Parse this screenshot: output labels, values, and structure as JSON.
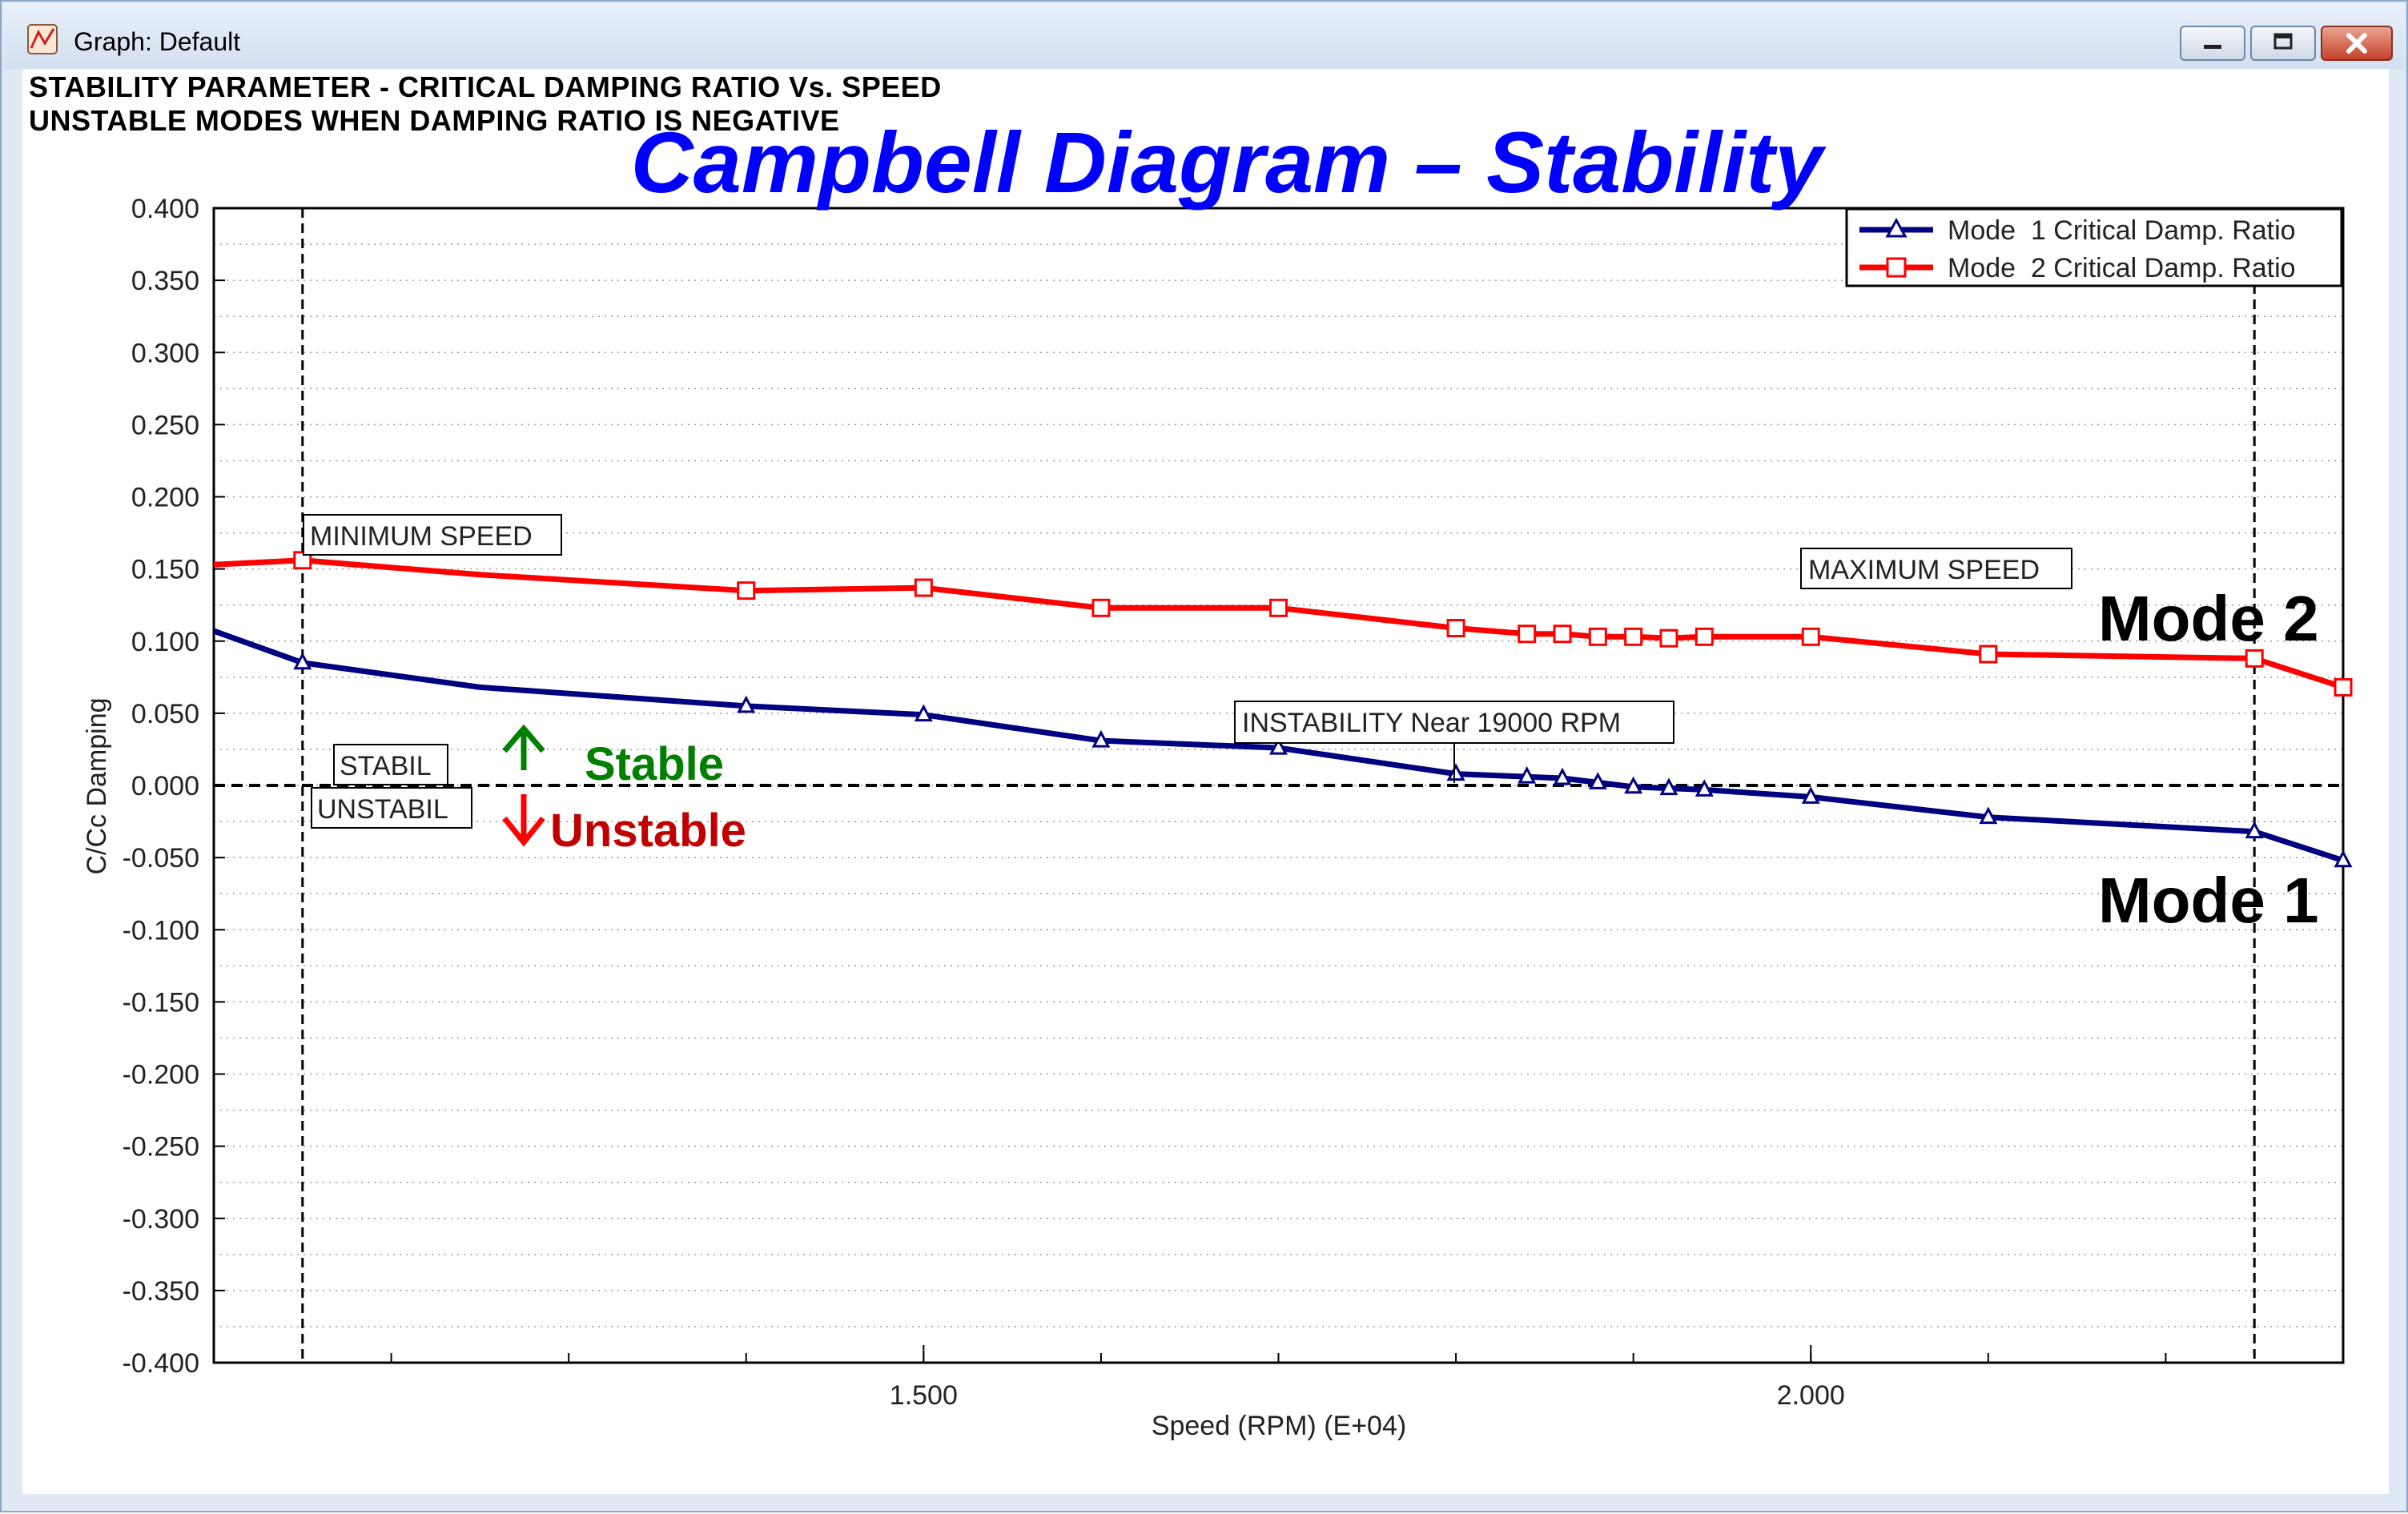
{
  "window": {
    "title": "Graph: Default"
  },
  "header": {
    "line1": "STABILITY PARAMETER - CRITICAL DAMPING RATIO Vs. SPEED",
    "line2": "UNSTABLE MODES WHEN DAMPING RATIO IS NEGATIVE"
  },
  "overlay": {
    "title": "Campbell Diagram – Stability",
    "stable": "Stable",
    "unstable": "Unstable",
    "mode2": "Mode 2",
    "mode1": "Mode 1"
  },
  "annotations": {
    "min_speed": "MINIMUM SPEED",
    "max_speed": "MAXIMUM SPEED",
    "instability": "INSTABILITY Near 19000 RPM",
    "stabil": "STABIL",
    "unstabil": "UNSTABIL"
  },
  "colors": {
    "mode1": "#000080",
    "mode2": "#ff0000",
    "title": "#0000ff",
    "stable": "#008000",
    "unstable": "#c00000"
  },
  "chart_data": {
    "type": "line",
    "xlabel": "Speed (RPM) (E+04)",
    "ylabel": "C/Cc Damping",
    "xlim": [
      1.1,
      2.3
    ],
    "ylim": [
      -0.4,
      0.4
    ],
    "x_ticks": [
      1.5,
      2.0
    ],
    "x_tick_labels": [
      "1.500",
      "2.000"
    ],
    "y_ticks": [
      0.4,
      0.35,
      0.3,
      0.25,
      0.2,
      0.15,
      0.1,
      0.05,
      0.0,
      -0.05,
      -0.1,
      -0.15,
      -0.2,
      -0.25,
      -0.3,
      -0.35,
      -0.4
    ],
    "y_tick_labels": [
      "0.400",
      "0.350",
      "0.300",
      "0.250",
      "0.200",
      "0.150",
      "0.100",
      "0.050",
      "0.000",
      "-0.050",
      "-0.100",
      "-0.150",
      "-0.200",
      "-0.250",
      "-0.300",
      "-0.350",
      "-0.400"
    ],
    "grid": "minor dotted horizontal",
    "legend_position": "top-right",
    "reference_lines": {
      "min_speed_x": 1.15,
      "max_speed_x": 2.25,
      "zero_y": 0.0
    },
    "series": [
      {
        "name": "Mode  1 Critical Damp. Ratio",
        "marker": "triangle",
        "color": "#000080",
        "line_x": [
          1.1,
          1.15,
          1.25,
          1.4,
          1.5,
          1.6,
          1.7,
          1.8,
          1.84,
          1.86,
          1.88,
          1.9,
          1.92,
          1.94,
          2.0,
          2.1,
          2.25,
          2.3
        ],
        "line_y": [
          0.107,
          0.085,
          0.068,
          0.055,
          0.049,
          0.031,
          0.026,
          0.008,
          0.006,
          0.005,
          0.002,
          -0.001,
          -0.002,
          -0.003,
          -0.008,
          -0.022,
          -0.032,
          -0.052
        ],
        "x": [
          1.15,
          1.4,
          1.5,
          1.6,
          1.7,
          1.8,
          1.84,
          1.86,
          1.88,
          1.9,
          1.92,
          1.94,
          2.0,
          2.1,
          2.25,
          2.3
        ],
        "y": [
          0.085,
          0.055,
          0.049,
          0.031,
          0.026,
          0.008,
          0.006,
          0.005,
          0.002,
          -0.001,
          -0.002,
          -0.003,
          -0.008,
          -0.022,
          -0.032,
          -0.052
        ]
      },
      {
        "name": "Mode  2 Critical Damp. Ratio",
        "marker": "square",
        "color": "#ff0000",
        "line_x": [
          1.1,
          1.15,
          1.25,
          1.4,
          1.5,
          1.6,
          1.7,
          1.8,
          1.84,
          1.86,
          1.88,
          1.9,
          1.92,
          1.94,
          2.0,
          2.1,
          2.25,
          2.3
        ],
        "line_y": [
          0.153,
          0.156,
          0.146,
          0.135,
          0.137,
          0.123,
          0.123,
          0.109,
          0.105,
          0.105,
          0.103,
          0.103,
          0.102,
          0.103,
          0.103,
          0.091,
          0.088,
          0.068
        ],
        "x": [
          1.15,
          1.4,
          1.5,
          1.6,
          1.7,
          1.8,
          1.84,
          1.86,
          1.88,
          1.9,
          1.92,
          1.94,
          2.0,
          2.1,
          2.25,
          2.3
        ],
        "y": [
          0.156,
          0.135,
          0.137,
          0.123,
          0.123,
          0.109,
          0.105,
          0.105,
          0.103,
          0.103,
          0.102,
          0.103,
          0.103,
          0.091,
          0.088,
          0.068
        ]
      }
    ]
  }
}
